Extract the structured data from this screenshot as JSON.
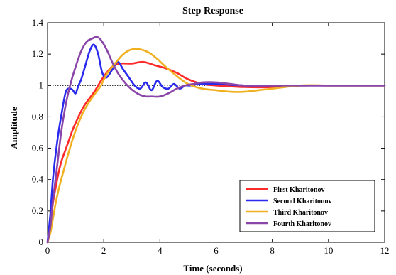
{
  "chart_data": {
    "type": "line",
    "title": "Step Response",
    "xlabel": "Time (seconds)",
    "ylabel": "Amplitude",
    "xlim": [
      0,
      12
    ],
    "ylim": [
      0,
      1.4
    ],
    "xticks": [
      0,
      2,
      4,
      6,
      8,
      10,
      12
    ],
    "xtick_labels": [
      "0",
      "2",
      "4",
      "6",
      "8",
      "10",
      "12"
    ],
    "yticks": [
      0,
      0.2,
      0.4,
      0.6,
      0.8,
      1,
      1.2,
      1.4
    ],
    "ytick_labels": [
      "0",
      "0.2",
      "0.4",
      "0.6",
      "0.8",
      "1",
      "1.2",
      "1.4"
    ],
    "grid": false,
    "legend_position": "bottom-right",
    "reference_line": {
      "y": 1,
      "style": "dotted",
      "color": "#000000"
    },
    "series": [
      {
        "name": "First Kharitonov",
        "color": "#ff2a2a",
        "x": [
          0,
          0.1,
          0.2,
          0.3,
          0.4,
          0.5,
          0.7,
          0.9,
          1.1,
          1.3,
          1.5,
          1.7,
          1.9,
          2.1,
          2.3,
          2.6,
          3.0,
          3.4,
          3.8,
          4.2,
          4.6,
          5.0,
          5.5,
          6.0,
          7.0,
          8.0,
          9.0,
          10.0,
          11.0,
          12.0
        ],
        "y": [
          0,
          0.12,
          0.26,
          0.36,
          0.45,
          0.52,
          0.62,
          0.72,
          0.8,
          0.87,
          0.92,
          0.97,
          1.03,
          1.08,
          1.12,
          1.14,
          1.14,
          1.15,
          1.13,
          1.11,
          1.08,
          1.04,
          1.01,
          1.0,
          0.99,
          0.99,
          1.0,
          1.0,
          1.0,
          1.0
        ]
      },
      {
        "name": "Second Kharitonov",
        "color": "#2a2aee",
        "x": [
          0,
          0.1,
          0.2,
          0.35,
          0.5,
          0.65,
          0.8,
          0.9,
          1.0,
          1.1,
          1.2,
          1.35,
          1.5,
          1.65,
          1.8,
          1.95,
          2.1,
          2.3,
          2.5,
          2.7,
          2.9,
          3.1,
          3.3,
          3.5,
          3.7,
          3.9,
          4.1,
          4.3,
          4.5,
          4.7,
          4.9,
          5.1,
          5.4,
          5.7,
          6.0,
          7.0,
          8.0,
          9.0,
          10.0,
          11.0,
          12.0
        ],
        "y": [
          0,
          0.18,
          0.42,
          0.65,
          0.82,
          0.96,
          0.98,
          0.97,
          0.95,
          1.0,
          1.04,
          1.13,
          1.22,
          1.26,
          1.2,
          1.08,
          1.05,
          1.1,
          1.15,
          1.1,
          1.05,
          1.0,
          0.98,
          1.02,
          0.97,
          1.03,
          0.99,
          0.98,
          1.01,
          0.98,
          1.0,
          1.0,
          1.01,
          1.01,
          1.01,
          1.0,
          1.0,
          1.0,
          1.0,
          1.0,
          1.0
        ]
      },
      {
        "name": "Third Kharitonov",
        "color": "#f0b020",
        "x": [
          0,
          0.1,
          0.2,
          0.3,
          0.4,
          0.5,
          0.7,
          0.9,
          1.1,
          1.3,
          1.5,
          1.7,
          1.9,
          2.1,
          2.4,
          2.7,
          3.0,
          3.3,
          3.6,
          3.9,
          4.2,
          4.6,
          5.0,
          5.5,
          6.0,
          6.5,
          7.0,
          7.5,
          8.0,
          9.0,
          10.0,
          11.0,
          12.0
        ],
        "y": [
          0,
          0.06,
          0.16,
          0.26,
          0.34,
          0.41,
          0.54,
          0.66,
          0.76,
          0.84,
          0.9,
          0.95,
          1.0,
          1.07,
          1.14,
          1.2,
          1.23,
          1.23,
          1.21,
          1.17,
          1.12,
          1.06,
          1.01,
          0.98,
          0.97,
          0.96,
          0.96,
          0.97,
          0.98,
          1.0,
          1.0,
          1.0,
          1.0
        ]
      },
      {
        "name": "Fourth Kharitonov",
        "color": "#8a45a8",
        "x": [
          0,
          0.1,
          0.2,
          0.35,
          0.5,
          0.65,
          0.8,
          1.0,
          1.2,
          1.4,
          1.6,
          1.75,
          1.9,
          2.1,
          2.3,
          2.5,
          2.7,
          2.9,
          3.1,
          3.3,
          3.5,
          3.7,
          4.0,
          4.3,
          4.6,
          4.9,
          5.2,
          5.5,
          6.0,
          6.5,
          7.0,
          8.0,
          9.0,
          10.0,
          11.0,
          12.0
        ],
        "y": [
          0,
          0.1,
          0.28,
          0.5,
          0.72,
          0.88,
          1.0,
          1.12,
          1.22,
          1.28,
          1.3,
          1.31,
          1.29,
          1.23,
          1.15,
          1.08,
          1.03,
          0.99,
          0.96,
          0.94,
          0.93,
          0.93,
          0.93,
          0.95,
          0.98,
          1.0,
          1.01,
          1.02,
          1.02,
          1.01,
          1.0,
          1.0,
          1.0,
          1.0,
          1.0,
          1.0
        ]
      }
    ]
  }
}
